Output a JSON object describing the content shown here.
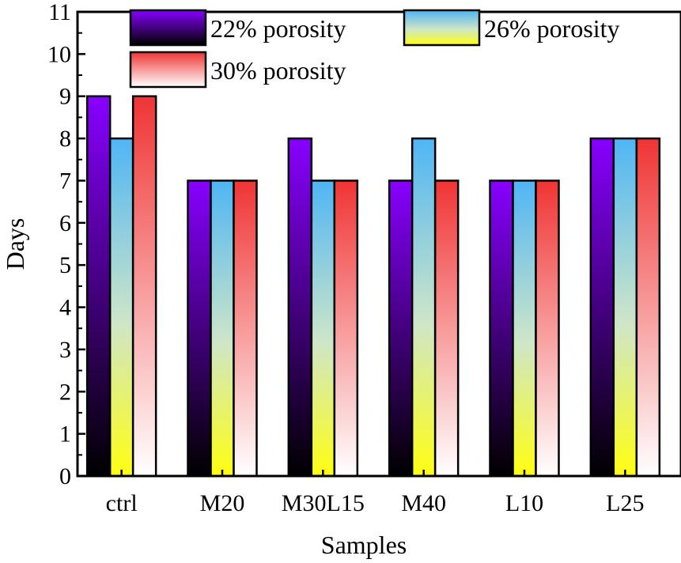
{
  "chart_data": {
    "type": "bar",
    "title": "",
    "xlabel": "Samples",
    "ylabel": "Days",
    "categories": [
      "ctrl",
      "M20",
      "M30L15",
      "M40",
      "L10",
      "L25"
    ],
    "series": [
      {
        "name": "22% porosity",
        "values": [
          9,
          7,
          8,
          7,
          7,
          8
        ]
      },
      {
        "name": "26% porosity",
        "values": [
          8,
          7,
          7,
          8,
          7,
          8
        ]
      },
      {
        "name": "30% porosity",
        "values": [
          9,
          7,
          7,
          7,
          7,
          8
        ]
      }
    ],
    "ylim": [
      0,
      11
    ],
    "yticks": [
      "0",
      "1",
      "2",
      "3",
      "4",
      "5",
      "6",
      "7",
      "8",
      "9",
      "10",
      "11"
    ],
    "grid": false,
    "legend_position": "top",
    "series_gradients": [
      {
        "top": "#8800ff",
        "bottom": "#000000"
      },
      {
        "top": "#4fb5f5",
        "bottom": "#ffff10"
      },
      {
        "top": "#f03434",
        "bottom": "#ffffff"
      }
    ]
  }
}
